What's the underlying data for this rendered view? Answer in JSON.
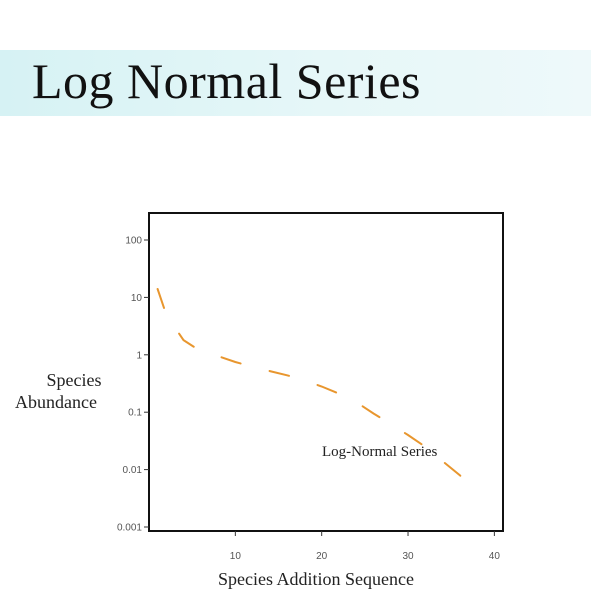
{
  "slide": {
    "title": "Log Normal Series"
  },
  "chart_data": {
    "type": "line",
    "title": "",
    "xlabel": "Species Addition Sequence",
    "ylabel": [
      "Species",
      "Abundance"
    ],
    "xlim": [
      0,
      41
    ],
    "ylim": [
      0.001,
      200
    ],
    "y_scale": "log",
    "x_ticks": [
      10,
      20,
      30,
      40
    ],
    "x_tick_labels": [
      "10",
      "20",
      "30",
      "40"
    ],
    "y_ticks": [
      0.001,
      0.01,
      0.1,
      1,
      10,
      100
    ],
    "y_tick_labels": [
      "0.001",
      "0.01",
      "0.1",
      "1",
      "10",
      "100"
    ],
    "grid": false,
    "line_style": "dashed",
    "series": [
      {
        "name": "Log-Normal Series",
        "color": "#e8962e",
        "x": [
          1,
          2,
          4,
          6,
          8,
          10,
          12,
          14,
          16,
          18,
          20,
          22,
          24,
          26,
          28,
          30,
          32,
          34,
          36,
          37
        ],
        "y": [
          14,
          5,
          1.8,
          1.15,
          0.95,
          0.75,
          0.62,
          0.52,
          0.44,
          0.36,
          0.28,
          0.21,
          0.15,
          0.095,
          0.062,
          0.04,
          0.025,
          0.014,
          0.008,
          0.0055
        ]
      }
    ]
  }
}
